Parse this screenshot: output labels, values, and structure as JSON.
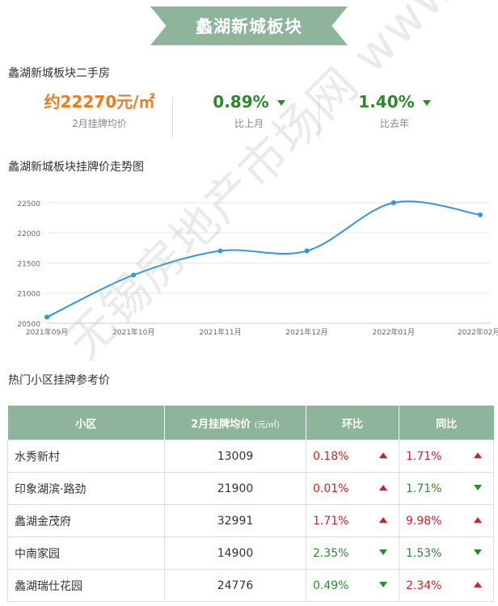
{
  "banner": {
    "title": "蠡湖新城板块"
  },
  "secondhand_title": "蠡湖新城板块二手房",
  "stats": [
    {
      "value": "约22270元/㎡",
      "label": "2月挂牌均价",
      "color": "#f07a1f"
    },
    {
      "value": "0.89%",
      "label": "比上月",
      "color": "#2b8a2b"
    },
    {
      "value": "1.40%",
      "label": "比去年",
      "color": "#2b8a2b"
    }
  ],
  "trend_title": "蠡湖新城板块挂牌价走势图",
  "chart_data": {
    "type": "line",
    "categories": [
      "2021年09月",
      "2021年10月",
      "2021年11月",
      "2021年12月",
      "2022年01月",
      "2022年02月"
    ],
    "values": [
      20600,
      21300,
      21700,
      21700,
      22500,
      22300
    ],
    "y_ticks": [
      20500,
      21000,
      21500,
      22000,
      22500
    ],
    "ylim": [
      20500,
      22700
    ],
    "grid": true,
    "line_color": "#2f95e0"
  },
  "table_title": "热门小区挂牌参考价",
  "table": {
    "headers": {
      "name": "小区",
      "price": "2月挂牌均价",
      "unit": "(元/㎡)",
      "mom": "环比",
      "yoy": "同比"
    },
    "rows": [
      {
        "name": "水秀新村",
        "price": "13009",
        "mom": "0.18%",
        "mom_dir": "up",
        "yoy": "1.71%",
        "yoy_dir": "up"
      },
      {
        "name": "印象湖滨·路劲",
        "price": "21900",
        "mom": "0.01%",
        "mom_dir": "up",
        "yoy": "1.71%",
        "yoy_dir": "down"
      },
      {
        "name": "蠡湖金茂府",
        "price": "32991",
        "mom": "1.71%",
        "mom_dir": "up",
        "yoy": "9.98%",
        "yoy_dir": "up"
      },
      {
        "name": "中南家园",
        "price": "14900",
        "mom": "2.35%",
        "mom_dir": "down",
        "yoy": "1.53%",
        "yoy_dir": "down"
      },
      {
        "name": "蠡湖瑞仕花园",
        "price": "24776",
        "mom": "0.49%",
        "mom_dir": "down",
        "yoy": "2.34%",
        "yoy_dir": "up"
      }
    ]
  },
  "watermark": "无锡房地产市场网 www.wxhouse.com"
}
